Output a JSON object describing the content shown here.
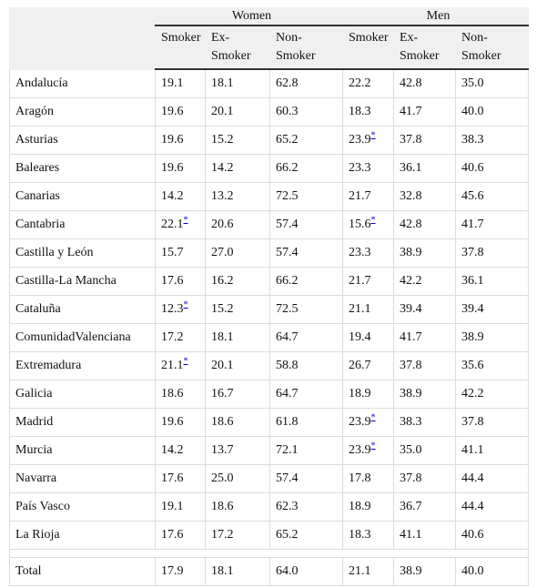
{
  "table": {
    "groups": [
      "Women",
      "Men"
    ],
    "columns": [
      "Smoker",
      "Ex-\nSmoker",
      "Non-\nSmoker",
      "Smoker",
      "Ex-\nSmoker",
      "Non-\nSmoker"
    ],
    "rows": [
      {
        "region": "Andalucía",
        "cells": [
          "19.1",
          "18.1",
          "62.8",
          "22.2",
          "42.8",
          "35.0"
        ]
      },
      {
        "region": "Aragón",
        "cells": [
          "19.6",
          "20.1",
          "60.3",
          "18.3",
          "41.7",
          "40.0"
        ]
      },
      {
        "region": "Asturias",
        "cells": [
          "19.6",
          "15.2",
          "65.2",
          {
            "value": "23.9",
            "note": "*"
          },
          "37.8",
          "38.3"
        ]
      },
      {
        "region": "Baleares",
        "cells": [
          "19.6",
          "14.2",
          "66.2",
          "23.3",
          "36.1",
          "40.6"
        ]
      },
      {
        "region": "Canarias",
        "cells": [
          "14.2",
          "13.2",
          "72.5",
          "21.7",
          "32.8",
          "45.6"
        ]
      },
      {
        "region": "Cantabria",
        "cells": [
          {
            "value": "22.1",
            "note": "*"
          },
          "20.6",
          "57.4",
          {
            "value": "15.6",
            "note": "*"
          },
          "42.8",
          "41.7"
        ]
      },
      {
        "region": "Castilla y León",
        "cells": [
          "15.7",
          "27.0",
          "57.4",
          "23.3",
          "38.9",
          "37.8"
        ]
      },
      {
        "region": "Castilla-La Mancha",
        "cells": [
          "17.6",
          "16.2",
          "66.2",
          "21.7",
          "42.2",
          "36.1"
        ]
      },
      {
        "region": "Cataluña",
        "cells": [
          {
            "value": "12.3",
            "note": "*"
          },
          "15.2",
          "72.5",
          "21.1",
          "39.4",
          "39.4"
        ]
      },
      {
        "region": "ComunidadValenciana",
        "cells": [
          "17.2",
          "18.1",
          "64.7",
          "19.4",
          "41.7",
          "38.9"
        ]
      },
      {
        "region": "Extremadura",
        "cells": [
          {
            "value": "21.1",
            "note": "*"
          },
          "20.1",
          "58.8",
          "26.7",
          "37.8",
          "35.6"
        ]
      },
      {
        "region": "Galicia",
        "cells": [
          "18.6",
          "16.7",
          "64.7",
          "18.9",
          "38.9",
          "42.2"
        ]
      },
      {
        "region": "Madrid",
        "cells": [
          "19.6",
          "18.6",
          "61.8",
          {
            "value": "23.9",
            "note": "*"
          },
          "38.3",
          "37.8"
        ]
      },
      {
        "region": "Murcia",
        "cells": [
          "14.2",
          "13.7",
          "72.1",
          {
            "value": "23.9",
            "note": "*"
          },
          "35.0",
          "41.1"
        ]
      },
      {
        "region": "Navarra",
        "cells": [
          "17.6",
          "25.0",
          "57.4",
          "17.8",
          "37.8",
          "44.4"
        ]
      },
      {
        "region": "País Vasco",
        "cells": [
          "19.1",
          "18.6",
          "62.3",
          "18.9",
          "36.7",
          "44.4"
        ]
      },
      {
        "region": "La Rioja",
        "cells": [
          "17.6",
          "17.2",
          "65.2",
          "18.3",
          "41.1",
          "40.6"
        ]
      }
    ],
    "total": {
      "region": "Total",
      "cells": [
        "17.9",
        "18.1",
        "64.0",
        "21.1",
        "38.9",
        "40.0"
      ]
    }
  }
}
